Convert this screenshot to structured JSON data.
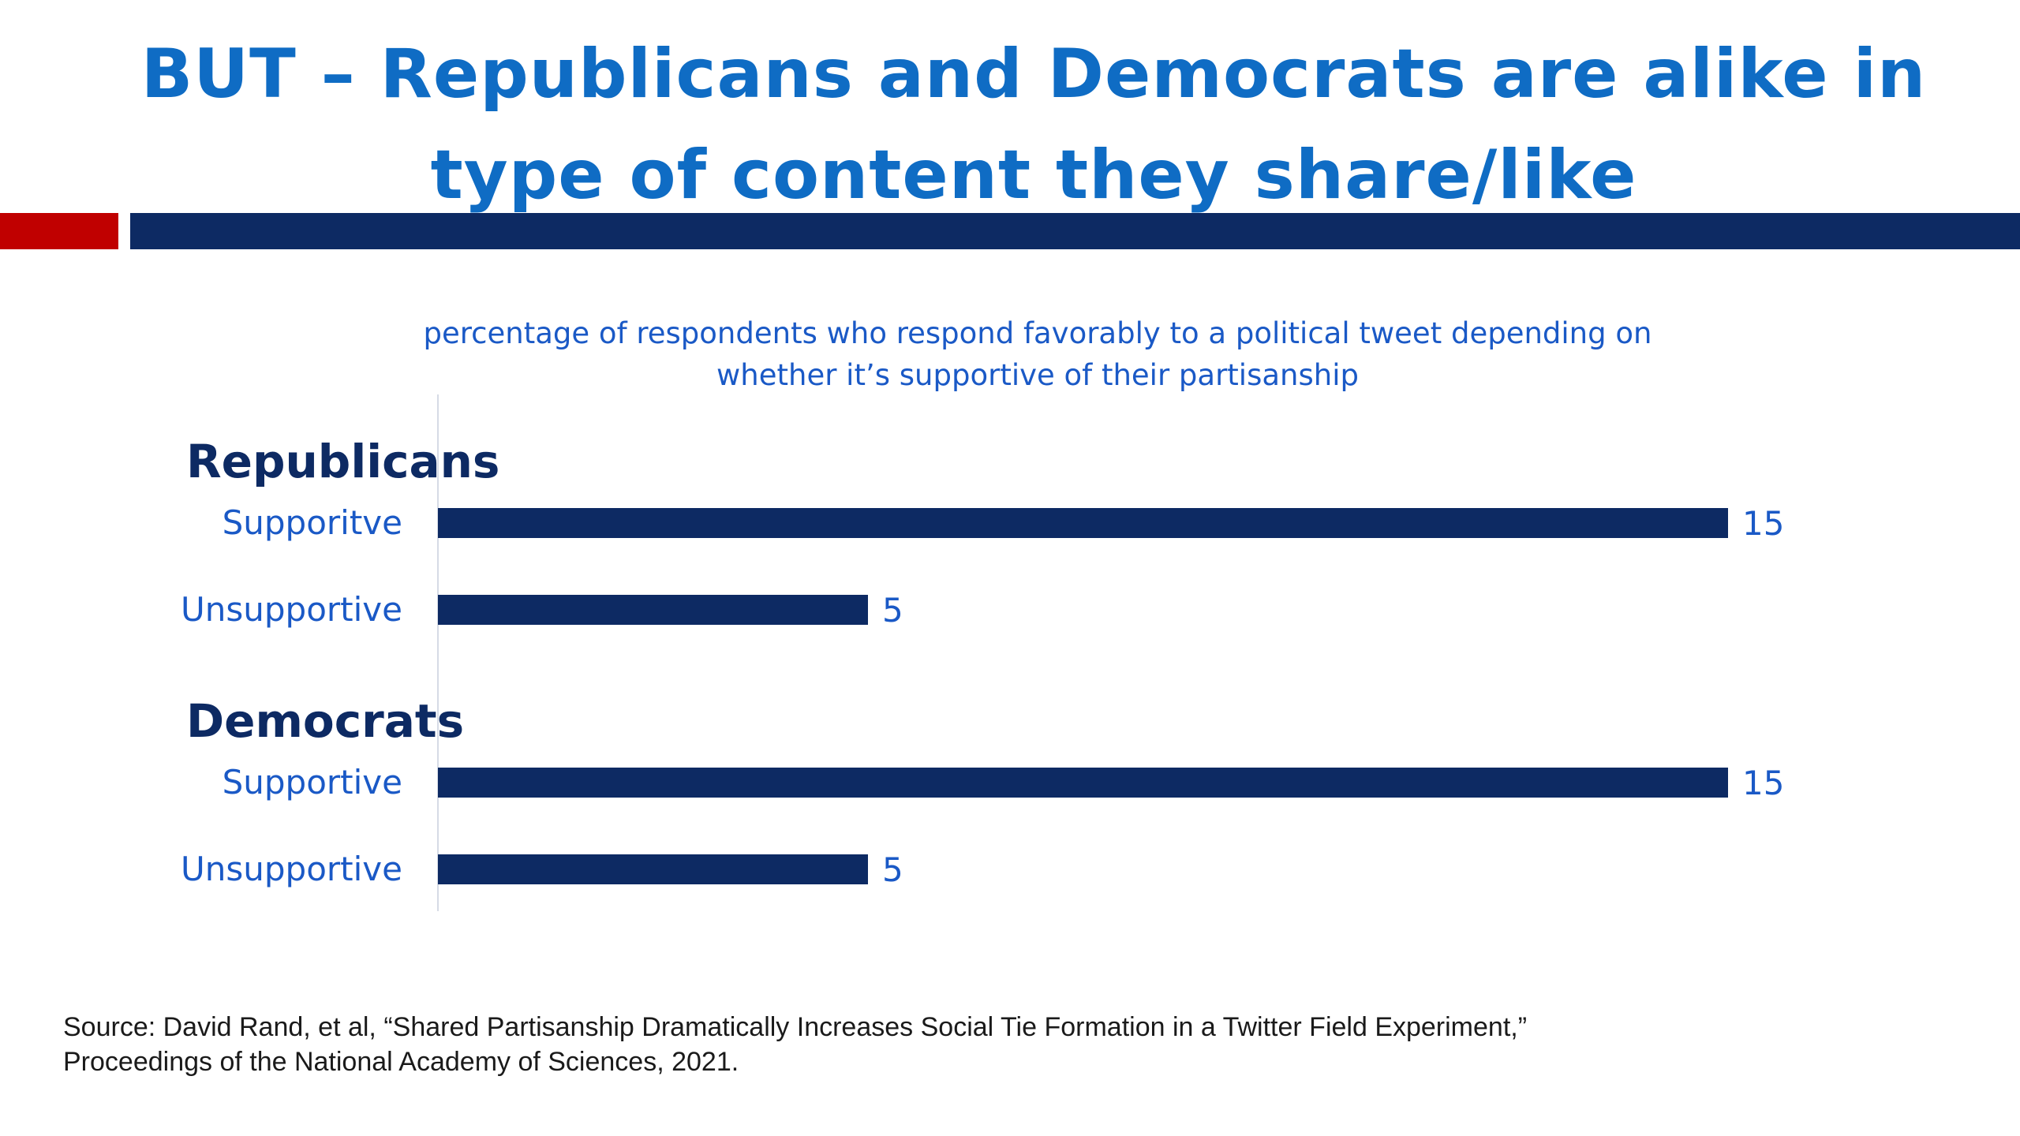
{
  "slide": {
    "title_lines": [
      "BUT – Republicans and Democrats are alike in",
      "type of content they share/like"
    ],
    "accent_colors": {
      "red": "#c00000",
      "navy": "#0d2a63"
    },
    "source_lines": [
      "Source: David Rand, et al, “Shared Partisanship Dramatically Increases Social Tie Formation in a Twitter Field Experiment,”",
      "Proceedings of the National Academy of Sciences, 2021."
    ]
  },
  "chart_data": {
    "type": "bar",
    "orientation": "horizontal",
    "title_lines": [
      "percentage of respondents who respond favorably to a political tweet depending on",
      "whether it’s supportive of their partisanship"
    ],
    "xlim": [
      0,
      15
    ],
    "grid": false,
    "bar_color": "#0d2a63",
    "label_color": "#1a59c6",
    "group_label_color": "#0d2a63",
    "groups": [
      {
        "name": "Republicans",
        "bars": [
          {
            "label": "Supporitve",
            "value": 15
          },
          {
            "label": "Unsupportive",
            "value": 5
          }
        ]
      },
      {
        "name": "Democrats",
        "bars": [
          {
            "label": "Supportive",
            "value": 15
          },
          {
            "label": "Unsupportive",
            "value": 5
          }
        ]
      }
    ]
  }
}
